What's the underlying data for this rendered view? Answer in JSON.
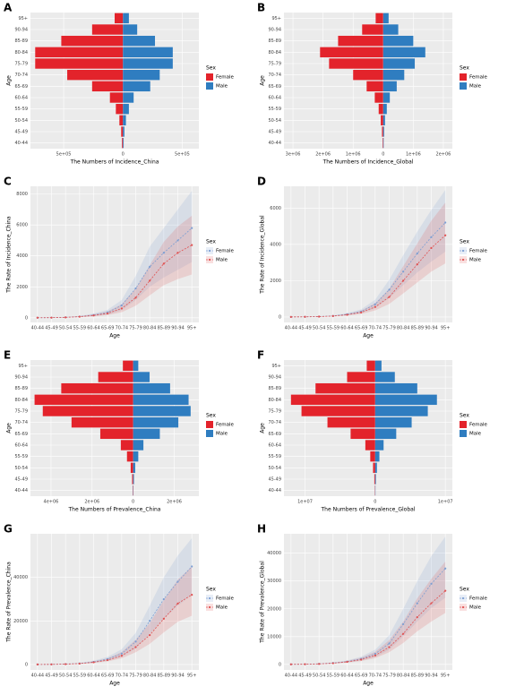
{
  "chart_data": [
    {
      "type": "bar",
      "orientation": "horizontal",
      "panel": "A",
      "ylabel": "Age",
      "xlabel": "The Numbers of Incidence_China",
      "legend_title": "Sex",
      "legend": "right",
      "grid": true,
      "categories": [
        "40-44",
        "45-49",
        "50-54",
        "55-59",
        "60-64",
        "65-69",
        "70-74",
        "75-79",
        "80-84",
        "85-89",
        "90-94",
        "95+"
      ],
      "series": [
        {
          "name": "Female",
          "color": "#e3232b",
          "values": [
            -8000,
            -15000,
            -30000,
            -60000,
            -110000,
            -260000,
            -470000,
            -740000,
            -740000,
            -520000,
            -260000,
            -70000
          ]
        },
        {
          "name": "Male",
          "color": "#2f7dc0",
          "values": [
            6000,
            12000,
            25000,
            50000,
            90000,
            230000,
            310000,
            420000,
            420000,
            270000,
            120000,
            50000
          ]
        }
      ],
      "xlim": [
        -780000,
        640000
      ],
      "xticks": [
        {
          "value": -500000,
          "label": "5e+05"
        },
        0,
        {
          "value": 500000,
          "label": "5e+05"
        }
      ]
    },
    {
      "type": "bar",
      "orientation": "horizontal",
      "panel": "B",
      "ylabel": "Age",
      "xlabel": "The Numbers of Incidence_Global",
      "legend_title": "Sex",
      "legend": "right",
      "grid": true,
      "categories": [
        "40-44",
        "45-49",
        "50-54",
        "55-59",
        "60-64",
        "65-69",
        "70-74",
        "75-79",
        "80-84",
        "85-89",
        "90-94",
        "95+"
      ],
      "series": [
        {
          "name": "Female",
          "color": "#e3232b",
          "values": [
            -20000,
            -40000,
            -80000,
            -150000,
            -280000,
            -550000,
            -1000000,
            -1800000,
            -2100000,
            -1500000,
            -700000,
            -250000
          ]
        },
        {
          "name": "Male",
          "color": "#2f7dc0",
          "values": [
            15000,
            30000,
            60000,
            120000,
            220000,
            450000,
            700000,
            1050000,
            1400000,
            1000000,
            500000,
            180000
          ]
        }
      ],
      "xlim": [
        -3300000,
        2300000
      ],
      "xticks": [
        {
          "value": -3000000,
          "label": "3e+06"
        },
        {
          "value": -2000000,
          "label": "2e+06"
        },
        {
          "value": -1000000,
          "label": "1e+06"
        },
        0,
        {
          "value": 1000000,
          "label": "1e+06"
        },
        {
          "value": 2000000,
          "label": "2e+06"
        }
      ]
    },
    {
      "type": "line",
      "panel": "C",
      "ylabel": "The Rate of Incidence_China",
      "xlabel": "Age",
      "legend_title": "Sex",
      "legend": "right",
      "grid": true,
      "categories": [
        "40-44",
        "45-49",
        "50-54",
        "55-59",
        "60-64",
        "65-69",
        "70-74",
        "75-79",
        "80-84",
        "85-89",
        "90-94",
        "95+"
      ],
      "series": [
        {
          "name": "Female",
          "color": "#7d9fd3",
          "values": [
            5,
            10,
            30,
            80,
            180,
            350,
            800,
            1900,
            3300,
            4200,
            5000,
            5800
          ],
          "upper": [
            8,
            15,
            45,
            120,
            270,
            520,
            1150,
            2700,
            4600,
            5800,
            7000,
            8200
          ],
          "lower": [
            3,
            6,
            18,
            50,
            110,
            210,
            480,
            1150,
            2000,
            2600,
            3100,
            3600
          ]
        },
        {
          "name": "Male",
          "color": "#e05252",
          "values": [
            3,
            8,
            25,
            70,
            150,
            280,
            600,
            1300,
            2400,
            3500,
            4200,
            4700
          ],
          "upper": [
            5,
            12,
            38,
            105,
            220,
            420,
            880,
            1900,
            3400,
            4900,
            5900,
            6600
          ],
          "lower": [
            2,
            5,
            15,
            42,
            90,
            170,
            360,
            780,
            1450,
            2100,
            2500,
            2800
          ]
        }
      ],
      "ylim": [
        -300,
        8500
      ],
      "yticks": [
        0,
        2000,
        4000,
        6000,
        8000
      ]
    },
    {
      "type": "line",
      "panel": "D",
      "ylabel": "The Rate of Incidence_Global",
      "xlabel": "Age",
      "legend_title": "Sex",
      "legend": "right",
      "grid": true,
      "categories": [
        "40-44",
        "45-49",
        "50-54",
        "55-59",
        "60-64",
        "65-69",
        "70-74",
        "75-79",
        "80-84",
        "85-89",
        "90-94",
        "95+"
      ],
      "series": [
        {
          "name": "Female",
          "color": "#7d9fd3",
          "values": [
            5,
            10,
            25,
            60,
            150,
            300,
            700,
            1500,
            2500,
            3500,
            4400,
            5200
          ],
          "upper": [
            7,
            14,
            35,
            85,
            210,
            420,
            950,
            2050,
            3400,
            4700,
            5900,
            7000
          ],
          "lower": [
            3,
            7,
            17,
            42,
            105,
            210,
            480,
            1050,
            1750,
            2450,
            3050,
            3600
          ]
        },
        {
          "name": "Male",
          "color": "#e05252",
          "values": [
            3,
            8,
            20,
            50,
            120,
            250,
            550,
            1100,
            2000,
            2900,
            3800,
            4500
          ],
          "upper": [
            5,
            11,
            28,
            70,
            170,
            350,
            770,
            1550,
            2800,
            4050,
            5300,
            6300
          ],
          "lower": [
            2,
            5,
            13,
            33,
            80,
            165,
            360,
            720,
            1300,
            1900,
            2500,
            2950
          ]
        }
      ],
      "ylim": [
        -300,
        7200
      ],
      "yticks": [
        0,
        2000,
        4000,
        6000
      ]
    },
    {
      "type": "bar",
      "orientation": "horizontal",
      "panel": "E",
      "ylabel": "Age",
      "xlabel": "The Numbers of Prevalence_China",
      "legend_title": "Sex",
      "legend": "right",
      "grid": true,
      "categories": [
        "40-44",
        "45-49",
        "50-54",
        "55-59",
        "60-64",
        "65-69",
        "70-74",
        "75-79",
        "80-84",
        "85-89",
        "90-94",
        "95+"
      ],
      "series": [
        {
          "name": "Female",
          "color": "#e3232b",
          "values": [
            -20000,
            -50000,
            -120000,
            -300000,
            -600000,
            -1600000,
            -3000000,
            -4400000,
            -4800000,
            -3500000,
            -1700000,
            -500000
          ]
        },
        {
          "name": "Male",
          "color": "#2f7dc0",
          "values": [
            15000,
            40000,
            100000,
            250000,
            500000,
            1300000,
            2200000,
            2800000,
            2700000,
            1800000,
            800000,
            250000
          ]
        }
      ],
      "xlim": [
        -5000000,
        3200000
      ],
      "xticks": [
        {
          "value": -4000000,
          "label": "4e+06"
        },
        {
          "value": -2000000,
          "label": "2e+06"
        },
        0,
        {
          "value": 2000000,
          "label": "2e+06"
        }
      ]
    },
    {
      "type": "bar",
      "orientation": "horizontal",
      "panel": "F",
      "ylabel": "Age",
      "xlabel": "The Numbers of Prevalence_Global",
      "legend_title": "Sex",
      "legend": "right",
      "grid": true,
      "categories": [
        "40-44",
        "45-49",
        "50-54",
        "55-59",
        "60-64",
        "65-69",
        "70-74",
        "75-79",
        "80-84",
        "85-89",
        "90-94",
        "95+"
      ],
      "series": [
        {
          "name": "Female",
          "color": "#e3232b",
          "values": [
            -50000,
            -120000,
            -300000,
            -700000,
            -1400000,
            -3500000,
            -6800000,
            -10500000,
            -12000000,
            -8500000,
            -4000000,
            -1200000
          ]
        },
        {
          "name": "Male",
          "color": "#2f7dc0",
          "values": [
            40000,
            100000,
            250000,
            600000,
            1200000,
            3000000,
            5200000,
            7500000,
            8800000,
            6000000,
            2800000,
            900000
          ]
        }
      ],
      "xlim": [
        -13000000,
        11000000
      ],
      "xticks": [
        {
          "value": -10000000,
          "label": "1e+07"
        },
        0,
        {
          "value": 10000000,
          "label": "1e+07"
        }
      ]
    },
    {
      "type": "line",
      "panel": "G",
      "ylabel": "The Rate of Prevalence_China",
      "xlabel": "Age",
      "legend_title": "Sex",
      "legend": "right",
      "grid": true,
      "categories": [
        "40-44",
        "45-49",
        "50-54",
        "55-59",
        "60-64",
        "65-69",
        "70-74",
        "75-79",
        "80-84",
        "85-89",
        "90-94",
        "95+"
      ],
      "series": [
        {
          "name": "Female",
          "color": "#7d9fd3",
          "values": [
            20,
            60,
            200,
            500,
            1200,
            2500,
            5000,
            10500,
            20000,
            30000,
            38000,
            45000
          ],
          "upper": [
            30,
            90,
            290,
            720,
            1700,
            3500,
            7000,
            14500,
            27000,
            40000,
            50000,
            58000
          ],
          "lower": [
            14,
            42,
            140,
            350,
            850,
            1750,
            3500,
            7300,
            14000,
            21000,
            27000,
            32000
          ]
        },
        {
          "name": "Male",
          "color": "#e05252",
          "values": [
            15,
            50,
            150,
            400,
            1000,
            2000,
            4000,
            8000,
            13500,
            21000,
            28000,
            32000
          ],
          "upper": [
            22,
            72,
            215,
            570,
            1420,
            2850,
            5700,
            11400,
            19000,
            29500,
            39000,
            45000
          ],
          "lower": [
            10,
            35,
            105,
            280,
            700,
            1400,
            2800,
            5600,
            9500,
            14700,
            19600,
            22400
          ]
        }
      ],
      "ylim": [
        -2500,
        60000
      ],
      "yticks": [
        0,
        20000,
        40000
      ]
    },
    {
      "type": "line",
      "panel": "H",
      "ylabel": "The Rate of Prevalence_Global",
      "xlabel": "Age",
      "legend_title": "Sex",
      "legend": "right",
      "grid": true,
      "categories": [
        "40-44",
        "45-49",
        "50-54",
        "55-59",
        "60-64",
        "65-69",
        "70-74",
        "75-79",
        "80-84",
        "85-89",
        "90-94",
        "95+"
      ],
      "series": [
        {
          "name": "Female",
          "color": "#7d9fd3",
          "values": [
            20,
            60,
            200,
            500,
            1000,
            2000,
            3800,
            7500,
            14500,
            22000,
            29000,
            34500
          ],
          "upper": [
            28,
            85,
            280,
            700,
            1400,
            2800,
            5300,
            10500,
            20000,
            30000,
            39000,
            46000
          ],
          "lower": [
            14,
            42,
            140,
            350,
            700,
            1400,
            2650,
            5250,
            10000,
            15400,
            20300,
            24000
          ]
        },
        {
          "name": "Male",
          "color": "#e05252",
          "values": [
            15,
            50,
            160,
            400,
            900,
            1700,
            3200,
            6200,
            11000,
            17000,
            22000,
            26500
          ],
          "upper": [
            21,
            70,
            225,
            560,
            1260,
            2400,
            4500,
            8700,
            15400,
            23800,
            30800,
            37000
          ],
          "lower": [
            10,
            35,
            110,
            280,
            630,
            1200,
            2250,
            4350,
            7700,
            11900,
            15400,
            18500
          ]
        }
      ],
      "ylim": [
        -2000,
        47000
      ],
      "yticks": [
        0,
        10000,
        20000,
        30000,
        40000
      ]
    }
  ]
}
